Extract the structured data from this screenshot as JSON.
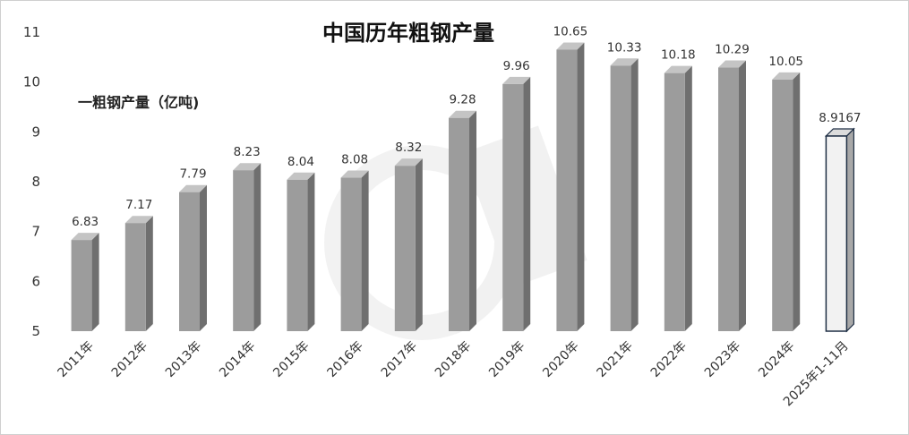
{
  "chart_data": {
    "type": "bar",
    "title": "中国历年粗钢产量",
    "legend": "一粗钢产量（亿吨)",
    "categories": [
      "2011年",
      "2012年",
      "2013年",
      "2014年",
      "2015年",
      "2016年",
      "2017年",
      "2018年",
      "2019年",
      "2020年",
      "2021年",
      "2022年",
      "2023年",
      "2024年",
      "2025年1-11月"
    ],
    "values": [
      6.83,
      7.17,
      7.79,
      8.23,
      8.04,
      8.08,
      8.32,
      9.28,
      9.96,
      10.65,
      10.33,
      10.18,
      10.29,
      10.05,
      8.9167
    ],
    "value_labels": [
      "6.83",
      "7.17",
      "7.79",
      "8.23",
      "8.04",
      "8.08",
      "8.32",
      "9.28",
      "9.96",
      "10.65",
      "10.33",
      "10.18",
      "10.29",
      "10.05",
      "8.9167"
    ],
    "highlight_index": 14,
    "ylim": [
      5,
      11
    ],
    "yticks": [
      "5",
      "6",
      "7",
      "8",
      "9",
      "10",
      "11"
    ],
    "ytick_values": [
      5,
      6,
      7,
      8,
      9,
      10,
      11
    ],
    "xlabel": "",
    "ylabel": "",
    "grid": false,
    "legend_position": "top-left",
    "colors": {
      "bar_front": "#9c9c9c",
      "bar_side": "#6f6f6f",
      "bar_top": "#c4c4c4",
      "highlight_front": "#f2f2f2",
      "highlight_side": "#a8a8a8",
      "highlight_top": "#dcdcdc",
      "highlight_stroke": "#1f2f45"
    }
  }
}
